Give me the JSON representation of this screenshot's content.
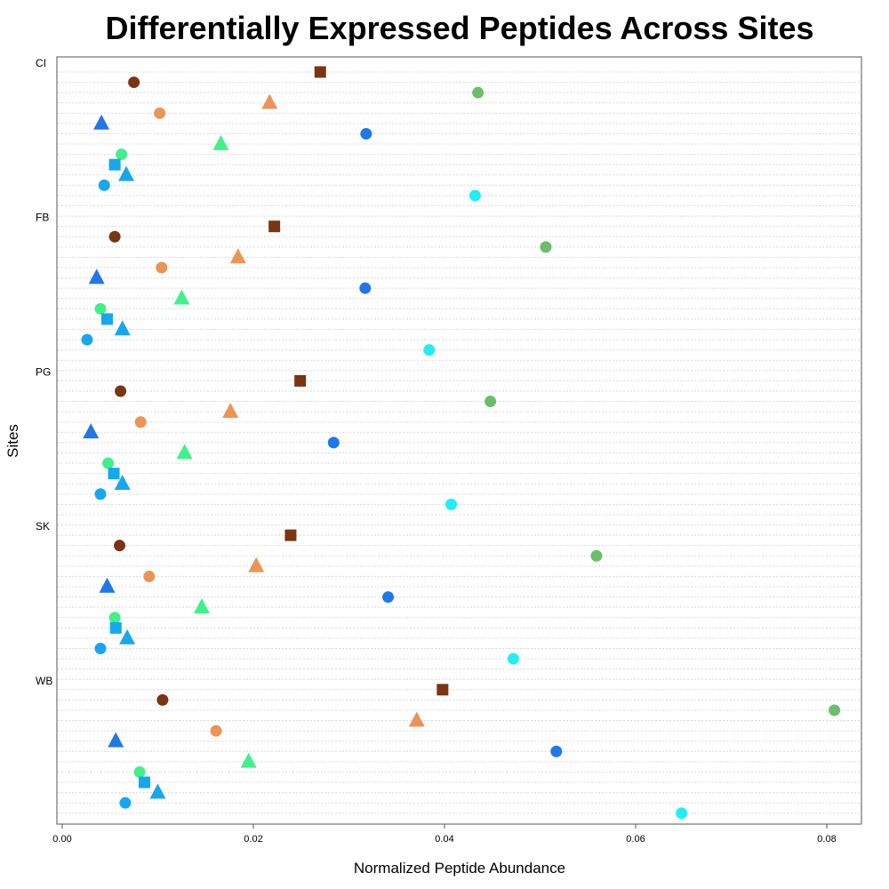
{
  "chart_data": {
    "type": "scatter",
    "title": "Differentially Expressed Peptides Across Sites",
    "xlabel": "Normalized Peptide Abundance",
    "ylabel": "Sites",
    "xlim": [
      0,
      0.084
    ],
    "xticks": [
      0.0,
      0.02,
      0.04,
      0.06,
      0.08
    ],
    "xtick_labels": [
      "0.00",
      "0.02",
      "0.04",
      "0.06",
      "0.08"
    ],
    "grid": true,
    "legend": "none",
    "sites": [
      "CI",
      "FB",
      "PG",
      "SK",
      "WB"
    ],
    "rows_per_site": 15,
    "peptides": [
      {
        "row": 0,
        "shape": "square",
        "color": "#7a3512"
      },
      {
        "row": 1,
        "shape": "circle",
        "color": "#7a3512"
      },
      {
        "row": 2,
        "shape": "circle",
        "color": "#6abf69"
      },
      {
        "row": 3,
        "shape": "triangle",
        "color": "#ea9555"
      },
      {
        "row": 4,
        "shape": "circle",
        "color": "#ea9555"
      },
      {
        "row": 5,
        "shape": "triangle",
        "color": "#1f78e8"
      },
      {
        "row": 6,
        "shape": "circle",
        "color": "#1f78e8"
      },
      {
        "row": 7,
        "shape": "triangle",
        "color": "#42f08a"
      },
      {
        "row": 8,
        "shape": "circle",
        "color": "#42f08a"
      },
      {
        "row": 9,
        "shape": "square",
        "color": "#15a8ee"
      },
      {
        "row": 10,
        "shape": "triangle",
        "color": "#15a8ee"
      },
      {
        "row": 11,
        "shape": "circle",
        "color": "#15a8ee"
      },
      {
        "row": 12,
        "shape": "circle",
        "color": "#22eef8"
      }
    ],
    "values": {
      "CI": [
        0.027,
        0.0075,
        0.0435,
        0.0217,
        0.0102,
        0.0041,
        0.0318,
        0.0166,
        0.0062,
        0.0055,
        0.0067,
        0.0044,
        0.0432
      ],
      "FB": [
        0.0222,
        0.0055,
        0.0506,
        0.0184,
        0.0104,
        0.0036,
        0.0317,
        0.0125,
        0.004,
        0.0047,
        0.0063,
        0.0026,
        0.0384
      ],
      "PG": [
        0.0249,
        0.0061,
        0.0448,
        0.0176,
        0.0082,
        0.003,
        0.0284,
        0.0128,
        0.0048,
        0.0054,
        0.0063,
        0.004,
        0.0407
      ],
      "SK": [
        0.0239,
        0.006,
        0.0559,
        0.0203,
        0.0091,
        0.0047,
        0.0341,
        0.0146,
        0.0055,
        0.0056,
        0.0068,
        0.004,
        0.0472
      ],
      "WB": [
        0.0398,
        0.0105,
        0.0808,
        0.0371,
        0.0161,
        0.0056,
        0.0517,
        0.0195,
        0.0081,
        0.0086,
        0.01,
        0.0066,
        0.0648
      ]
    }
  }
}
